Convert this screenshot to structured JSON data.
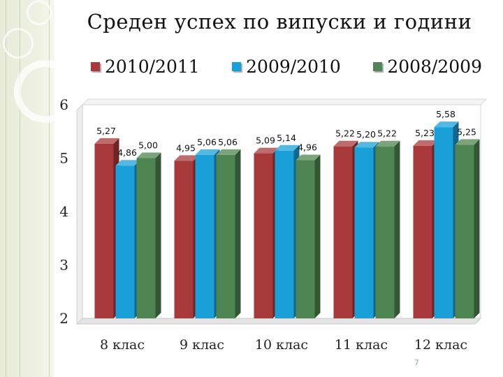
{
  "slide": {
    "page_number": "7",
    "accent_strip_color": "#eef1e2"
  },
  "chart_data": {
    "type": "bar",
    "title": "Среден успех по випуски и години",
    "xlabel": "",
    "ylabel": "",
    "categories": [
      "8 клас",
      "9 клас",
      "10 клас",
      "11 клас",
      "12 клас"
    ],
    "series": [
      {
        "name": "2010/2011",
        "color": "#a8393a",
        "values": [
          5.27,
          4.95,
          5.09,
          5.22,
          5.23
        ],
        "labels": [
          "5,27",
          "4,95",
          "5,09",
          "5,22",
          "5,23"
        ]
      },
      {
        "name": "2009/2010",
        "color": "#1aa0d8",
        "values": [
          4.86,
          5.06,
          5.14,
          5.2,
          5.58
        ],
        "labels": [
          "4,86",
          "5,06",
          "5,14",
          "5,20",
          "5,58"
        ]
      },
      {
        "name": "2008/2009",
        "color": "#4f8552",
        "values": [
          5.0,
          5.06,
          4.96,
          5.22,
          5.25
        ],
        "labels": [
          "5,00",
          "5,06",
          "4,96",
          "5,22",
          "5,25"
        ]
      }
    ],
    "ylim": [
      2,
      6
    ],
    "yticks": [
      2,
      3,
      4,
      5,
      6
    ],
    "ytick_labels": [
      "2",
      "3",
      "4",
      "5",
      "6"
    ],
    "grid": false,
    "legend_position": "top",
    "style": "3d-bars"
  }
}
